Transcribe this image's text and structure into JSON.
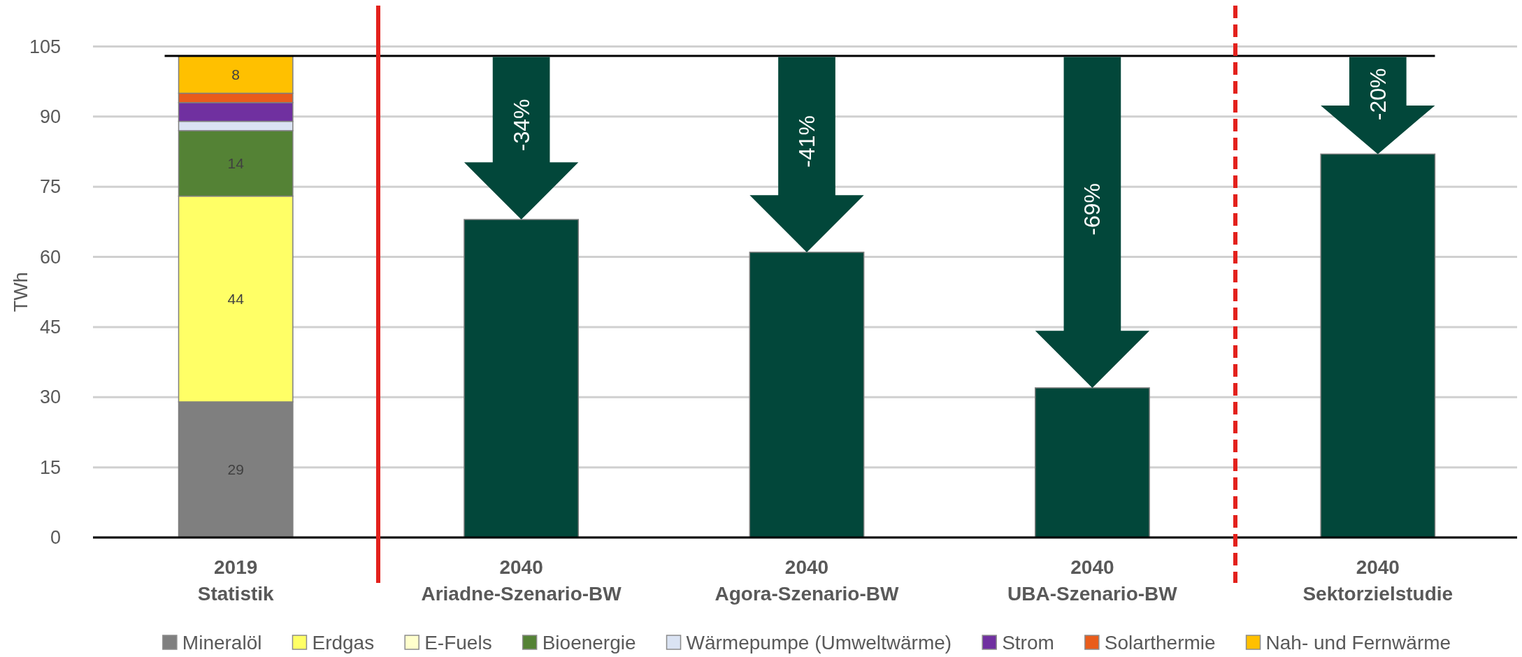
{
  "chart_data": {
    "type": "bar",
    "stacked": true,
    "categories": [
      "2019\nStatistik",
      "2040\nAriadne-Szenario-BW",
      "2040\nAgora-Szenario-BW",
      "2040\nUBA-Szenario-BW",
      "2040\nSektorzielstudie"
    ],
    "series": [
      {
        "name": "Mineralöl",
        "color": "#7f7f7f",
        "values": [
          29,
          null,
          null,
          null,
          null
        ],
        "value_labels": [
          "29",
          null,
          null,
          null,
          null
        ]
      },
      {
        "name": "Erdgas",
        "color": "#ffff66",
        "values": [
          44,
          null,
          null,
          null,
          null
        ],
        "value_labels": [
          "44",
          null,
          null,
          null,
          null
        ]
      },
      {
        "name": "E-Fuels",
        "color": "#ffffcc",
        "values": [
          0,
          null,
          null,
          null,
          null
        ]
      },
      {
        "name": "Bioenergie",
        "color": "#548235",
        "values": [
          14,
          null,
          null,
          null,
          null
        ],
        "value_labels": [
          "14",
          null,
          null,
          null,
          null
        ]
      },
      {
        "name": "Wärmepumpe (Umweltwärme)",
        "color": "#dae3f3",
        "values": [
          2,
          null,
          null,
          null,
          null
        ]
      },
      {
        "name": "Strom",
        "color": "#7030a0",
        "values": [
          4,
          null,
          null,
          null,
          null
        ]
      },
      {
        "name": "Solarthermie",
        "color": "#e95c1b",
        "values": [
          2,
          null,
          null,
          null,
          null
        ]
      },
      {
        "name": "Nah- und Fernwärme",
        "color": "#ffc000",
        "values": [
          8,
          null,
          null,
          null,
          null
        ],
        "value_labels": [
          "8",
          null,
          null,
          null,
          null
        ]
      },
      {
        "color": "#02473a",
        "values": [
          null,
          68,
          61,
          32,
          82
        ]
      }
    ],
    "ylabel": "TWh",
    "ylim": [
      0,
      105
    ],
    "yticks": [
      0,
      15,
      30,
      45,
      60,
      75,
      90,
      105
    ],
    "grid": "y",
    "legend": "bottom",
    "ref_lines": [
      {
        "axis": "y",
        "value": 103,
        "color": "#000000"
      }
    ],
    "annotations": [
      "-34%",
      "-41%",
      "-69%",
      "-20%"
    ]
  }
}
